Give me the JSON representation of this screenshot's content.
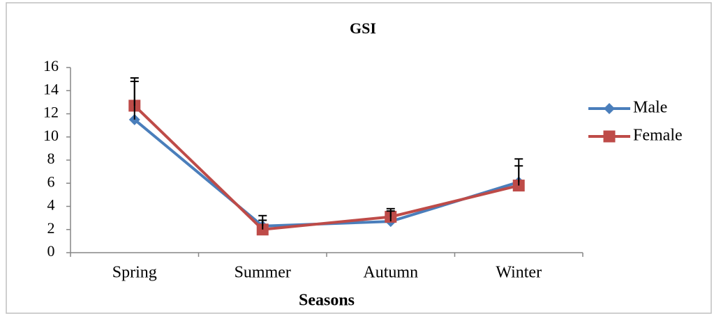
{
  "chart_data": {
    "type": "line",
    "title": "GSI",
    "x_label": "Seasons",
    "categories": [
      "Spring",
      "Summer",
      "Autumn",
      "Winter"
    ],
    "series": [
      {
        "name": "Male",
        "color": "#4a7ebb",
        "marker": "diamond",
        "values": [
          11.5,
          2.3,
          2.7,
          6.1
        ],
        "errors": [
          3.3,
          0.9,
          0.9,
          2.0
        ]
      },
      {
        "name": "Female",
        "color": "#be4b48",
        "marker": "square",
        "values": [
          12.7,
          2.0,
          3.1,
          5.8
        ],
        "errors": [
          2.4,
          0.8,
          0.7,
          1.7
        ]
      }
    ],
    "error_color": "#000000",
    "ylim": [
      0,
      16
    ],
    "yticks": [
      0,
      2,
      4,
      6,
      8,
      10,
      12,
      14,
      16
    ],
    "grid": false,
    "legend": "right"
  }
}
